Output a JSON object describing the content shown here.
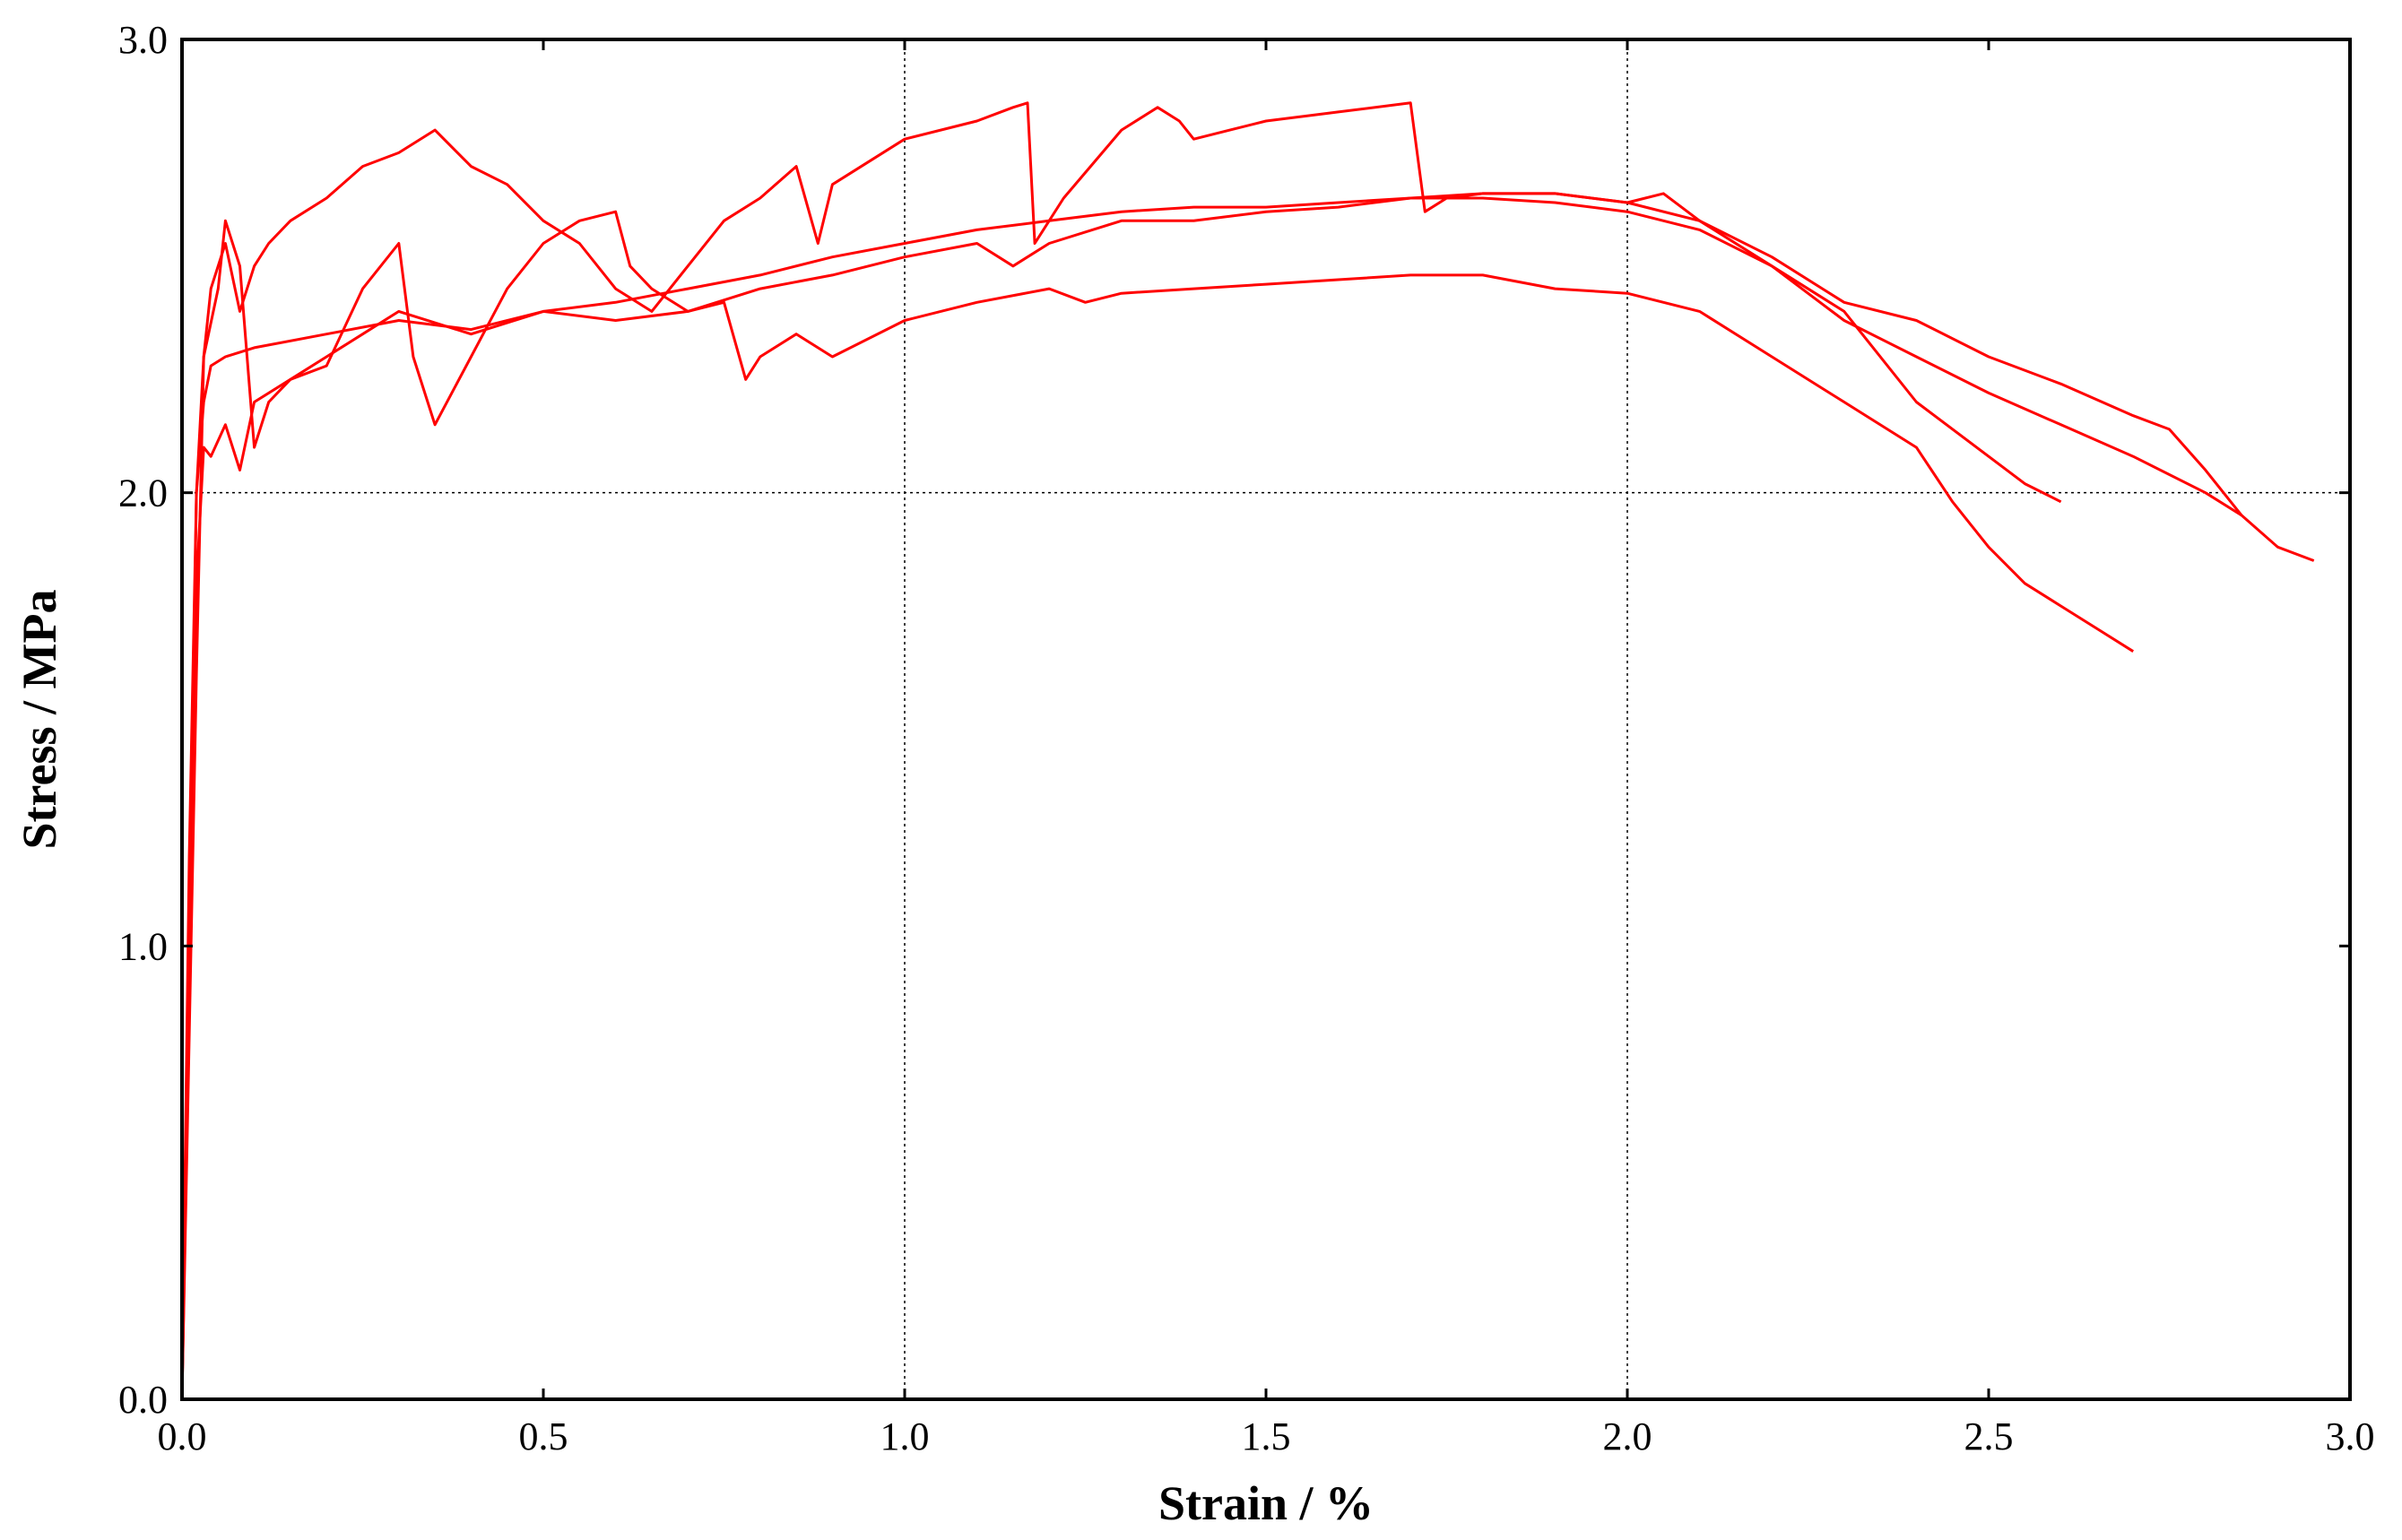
{
  "chart_data": {
    "type": "line",
    "title": "",
    "xlabel": "Strain / %",
    "ylabel": "Stress / MPa",
    "xlim": [
      0,
      3.0
    ],
    "ylim": [
      0,
      3.0
    ],
    "x_ticks": [
      "0.0",
      "0.5",
      "1.0",
      "1.5",
      "2.0",
      "2.5",
      "3.0"
    ],
    "y_ticks": [
      "0.0",
      "1.0",
      "2.0",
      "3.0"
    ],
    "grid": {
      "x": [
        1.0,
        2.0
      ],
      "y": [
        2.0
      ],
      "style": "dotted"
    },
    "legend": "none",
    "colors": {
      "series": "#ff0000",
      "axis": "#000000",
      "grid": "#000000"
    },
    "series": [
      {
        "points": [
          [
            0.0,
            0.0
          ],
          [
            0.01,
            1.2
          ],
          [
            0.02,
            2.0
          ],
          [
            0.03,
            2.2
          ],
          [
            0.04,
            2.28
          ],
          [
            0.06,
            2.3
          ],
          [
            0.1,
            2.32
          ],
          [
            0.2,
            2.35
          ],
          [
            0.3,
            2.38
          ],
          [
            0.4,
            2.36
          ],
          [
            0.5,
            2.4
          ],
          [
            0.6,
            2.42
          ],
          [
            0.7,
            2.45
          ],
          [
            0.8,
            2.48
          ],
          [
            0.9,
            2.52
          ],
          [
            1.0,
            2.55
          ],
          [
            1.1,
            2.58
          ],
          [
            1.2,
            2.6
          ],
          [
            1.3,
            2.62
          ],
          [
            1.4,
            2.63
          ],
          [
            1.5,
            2.63
          ],
          [
            1.6,
            2.64
          ],
          [
            1.7,
            2.65
          ],
          [
            1.8,
            2.66
          ],
          [
            1.9,
            2.66
          ],
          [
            2.0,
            2.64
          ],
          [
            2.1,
            2.6
          ],
          [
            2.2,
            2.52
          ],
          [
            2.3,
            2.42
          ],
          [
            2.4,
            2.38
          ],
          [
            2.5,
            2.3
          ],
          [
            2.6,
            2.24
          ],
          [
            2.7,
            2.17
          ],
          [
            2.75,
            2.14
          ],
          [
            2.8,
            2.05
          ],
          [
            2.85,
            1.95
          ],
          [
            2.9,
            1.88
          ],
          [
            2.95,
            1.85
          ]
        ]
      },
      {
        "points": [
          [
            0.0,
            0.0
          ],
          [
            0.02,
            1.8
          ],
          [
            0.03,
            2.1
          ],
          [
            0.04,
            2.08
          ],
          [
            0.06,
            2.15
          ],
          [
            0.08,
            2.05
          ],
          [
            0.1,
            2.2
          ],
          [
            0.15,
            2.25
          ],
          [
            0.2,
            2.3
          ],
          [
            0.25,
            2.35
          ],
          [
            0.3,
            2.4
          ],
          [
            0.4,
            2.35
          ],
          [
            0.5,
            2.4
          ],
          [
            0.6,
            2.38
          ],
          [
            0.7,
            2.4
          ],
          [
            0.8,
            2.45
          ],
          [
            0.9,
            2.48
          ],
          [
            1.0,
            2.52
          ],
          [
            1.1,
            2.55
          ],
          [
            1.15,
            2.5
          ],
          [
            1.2,
            2.55
          ],
          [
            1.3,
            2.6
          ],
          [
            1.4,
            2.6
          ],
          [
            1.5,
            2.62
          ],
          [
            1.6,
            2.63
          ],
          [
            1.7,
            2.65
          ],
          [
            1.8,
            2.65
          ],
          [
            1.9,
            2.64
          ],
          [
            2.0,
            2.62
          ],
          [
            2.1,
            2.58
          ],
          [
            2.2,
            2.5
          ],
          [
            2.3,
            2.38
          ],
          [
            2.4,
            2.3
          ],
          [
            2.5,
            2.22
          ],
          [
            2.6,
            2.15
          ],
          [
            2.7,
            2.08
          ],
          [
            2.8,
            2.0
          ],
          [
            2.85,
            1.95
          ]
        ]
      },
      {
        "points": [
          [
            0.0,
            0.0
          ],
          [
            0.02,
            2.0
          ],
          [
            0.03,
            2.3
          ],
          [
            0.05,
            2.45
          ],
          [
            0.06,
            2.6
          ],
          [
            0.08,
            2.5
          ],
          [
            0.1,
            2.1
          ],
          [
            0.12,
            2.2
          ],
          [
            0.15,
            2.25
          ],
          [
            0.2,
            2.28
          ],
          [
            0.25,
            2.45
          ],
          [
            0.3,
            2.55
          ],
          [
            0.32,
            2.3
          ],
          [
            0.35,
            2.15
          ],
          [
            0.4,
            2.3
          ],
          [
            0.45,
            2.45
          ],
          [
            0.5,
            2.55
          ],
          [
            0.55,
            2.6
          ],
          [
            0.6,
            2.62
          ],
          [
            0.62,
            2.5
          ],
          [
            0.65,
            2.45
          ],
          [
            0.7,
            2.4
          ],
          [
            0.75,
            2.42
          ],
          [
            0.78,
            2.25
          ],
          [
            0.8,
            2.3
          ],
          [
            0.85,
            2.35
          ],
          [
            0.9,
            2.3
          ],
          [
            1.0,
            2.38
          ],
          [
            1.1,
            2.42
          ],
          [
            1.2,
            2.45
          ],
          [
            1.25,
            2.42
          ],
          [
            1.3,
            2.44
          ],
          [
            1.4,
            2.45
          ],
          [
            1.5,
            2.46
          ],
          [
            1.6,
            2.47
          ],
          [
            1.7,
            2.48
          ],
          [
            1.8,
            2.48
          ],
          [
            1.9,
            2.45
          ],
          [
            2.0,
            2.44
          ],
          [
            2.1,
            2.4
          ],
          [
            2.2,
            2.3
          ],
          [
            2.3,
            2.2
          ],
          [
            2.4,
            2.1
          ],
          [
            2.45,
            1.98
          ],
          [
            2.5,
            1.88
          ],
          [
            2.55,
            1.8
          ],
          [
            2.6,
            1.75
          ],
          [
            2.65,
            1.7
          ],
          [
            2.7,
            1.65
          ]
        ]
      },
      {
        "points": [
          [
            0.0,
            0.0
          ],
          [
            0.02,
            1.6
          ],
          [
            0.03,
            2.3
          ],
          [
            0.04,
            2.45
          ],
          [
            0.06,
            2.55
          ],
          [
            0.08,
            2.4
          ],
          [
            0.1,
            2.5
          ],
          [
            0.12,
            2.55
          ],
          [
            0.15,
            2.6
          ],
          [
            0.2,
            2.65
          ],
          [
            0.25,
            2.72
          ],
          [
            0.3,
            2.75
          ],
          [
            0.35,
            2.8
          ],
          [
            0.4,
            2.72
          ],
          [
            0.45,
            2.68
          ],
          [
            0.5,
            2.6
          ],
          [
            0.55,
            2.55
          ],
          [
            0.6,
            2.45
          ],
          [
            0.65,
            2.4
          ],
          [
            0.7,
            2.5
          ],
          [
            0.75,
            2.6
          ],
          [
            0.8,
            2.65
          ],
          [
            0.85,
            2.72
          ],
          [
            0.88,
            2.55
          ],
          [
            0.9,
            2.68
          ],
          [
            1.0,
            2.78
          ],
          [
            1.1,
            2.82
          ],
          [
            1.15,
            2.85
          ],
          [
            1.17,
            2.86
          ],
          [
            1.18,
            2.55
          ],
          [
            1.22,
            2.65
          ],
          [
            1.3,
            2.8
          ],
          [
            1.35,
            2.85
          ],
          [
            1.38,
            2.82
          ],
          [
            1.4,
            2.78
          ],
          [
            1.45,
            2.8
          ],
          [
            1.5,
            2.82
          ],
          [
            1.6,
            2.84
          ],
          [
            1.7,
            2.86
          ],
          [
            1.72,
            2.62
          ],
          [
            1.75,
            2.65
          ],
          [
            1.8,
            2.66
          ],
          [
            1.9,
            2.66
          ],
          [
            2.0,
            2.64
          ],
          [
            2.05,
            2.66
          ],
          [
            2.1,
            2.6
          ],
          [
            2.2,
            2.5
          ],
          [
            2.3,
            2.4
          ],
          [
            2.4,
            2.2
          ],
          [
            2.5,
            2.08
          ],
          [
            2.55,
            2.02
          ],
          [
            2.6,
            1.98
          ]
        ]
      }
    ]
  }
}
